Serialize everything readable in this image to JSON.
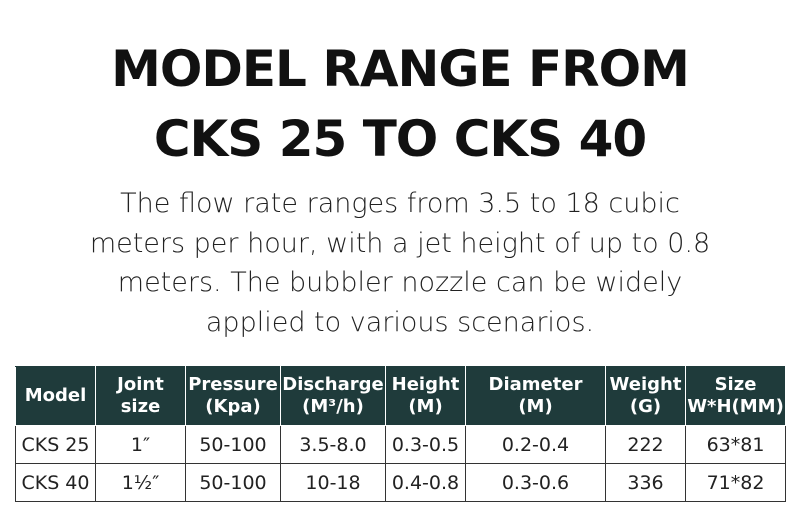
{
  "header": {
    "title_lines": [
      "MODEL RANGE FROM",
      "CKS 25 TO  CKS 40"
    ]
  },
  "description_lines": [
    "The flow rate ranges from 3.5 to 18 cubic",
    "meters per hour, with a jet height of up to 0.8",
    "meters. The bubbler nozzle can be widely",
    "applied to various scenarios."
  ],
  "table": {
    "columns": [
      [
        "Model"
      ],
      [
        "Joint",
        "size"
      ],
      [
        "Pressure",
        "(Kpa)"
      ],
      [
        "Discharge",
        "(M³/h)"
      ],
      [
        "Height",
        "(M)"
      ],
      [
        "Diameter",
        "(M)"
      ],
      [
        "Weight",
        "(G)"
      ],
      [
        "Size",
        "W*H(MM)"
      ]
    ],
    "rows": [
      [
        "CKS 25",
        "1″",
        "50-100",
        "3.5-8.0",
        "0.3-0.5",
        "0.2-0.4",
        "222",
        "63*81"
      ],
      [
        "CKS 40",
        "1½″",
        "50-100",
        "10-18",
        "0.4-0.8",
        "0.3-0.6",
        "336",
        "71*82"
      ]
    ]
  }
}
